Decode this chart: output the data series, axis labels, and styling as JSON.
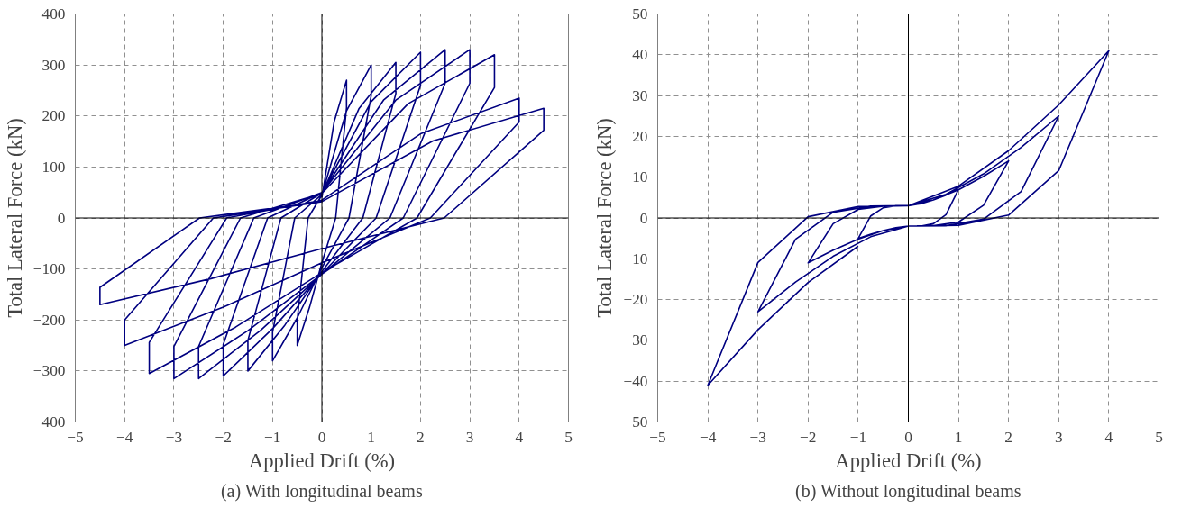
{
  "chart_data": [
    {
      "type": "line",
      "xlabel": "Applied Drift (%)",
      "ylabel": "Total Lateral Force (kN)",
      "annotations": [
        "(a) With longitudinal beams"
      ],
      "xlim": [
        -5,
        5
      ],
      "ylim": [
        -400,
        400
      ],
      "xticks": [
        -5,
        -4,
        -3,
        -2,
        -1,
        0,
        1,
        2,
        3,
        4,
        5
      ],
      "yticks": [
        -400,
        -300,
        -200,
        -100,
        0,
        100,
        200,
        300,
        400
      ],
      "grid": true,
      "series": [
        {
          "color": "#000080",
          "x": [
            0,
            0.25,
            0.5,
            0.5,
            0.28,
            0,
            -0.25,
            -0.5,
            -0.5,
            -0.28,
            0,
            0.5,
            1,
            1,
            0.55,
            0,
            -0.5,
            -1,
            -1,
            -0.55,
            0,
            0.75,
            1.5,
            1.5,
            0.83,
            0,
            -0.75,
            -1.5,
            -1.5,
            -0.83,
            0,
            1,
            2,
            2,
            1.1,
            0,
            -1,
            -2,
            -2,
            -1.1,
            0,
            1.25,
            2.5,
            2.5,
            1.38,
            0,
            -1.25,
            -2.5,
            -2.5,
            -1.38,
            0,
            1.5,
            3,
            3,
            1.65,
            0,
            -1.5,
            -3,
            -3,
            -1.65,
            0,
            1.75,
            3.5,
            3.5,
            1.93,
            0,
            -1.75,
            -3.5,
            -3.5,
            -1.93,
            0,
            2,
            4,
            4,
            2.2,
            0,
            -2,
            -4,
            -4,
            -2.2,
            0,
            2.25,
            4.5,
            4.5,
            2.48,
            0,
            -2.25,
            -4.5,
            -4.5,
            -2.48,
            0
          ],
          "values": [
            40,
            189,
            270,
            216,
            0,
            -88,
            -175,
            -250,
            -200,
            0,
            45,
            210,
            300,
            240,
            0,
            -98,
            -196,
            -280,
            -224,
            0,
            46,
            214,
            305,
            244,
            0,
            -105,
            -210,
            -300,
            -240,
            0,
            49,
            228,
            325,
            260,
            0,
            -109,
            -217,
            -310,
            -248,
            0,
            50,
            231,
            330,
            264,
            0,
            -110,
            -221,
            -315,
            -252,
            0,
            50,
            231,
            330,
            264,
            0,
            -110,
            -221,
            -315,
            -252,
            0,
            48,
            224,
            320,
            256,
            0,
            -107,
            -214,
            -305,
            -244,
            0,
            35,
            165,
            235,
            188,
            0,
            -88,
            -175,
            -250,
            -200,
            0,
            32,
            151,
            215,
            172,
            0,
            -60,
            -119,
            -170,
            -136,
            0,
            32
          ]
        }
      ]
    },
    {
      "type": "line",
      "xlabel": "Applied Drift (%)",
      "ylabel": "Total Lateral Force (kN)",
      "annotations": [
        "(b) Without longitudinal beams"
      ],
      "xlim": [
        -5,
        5
      ],
      "ylim": [
        -50,
        50
      ],
      "xticks": [
        -5,
        -4,
        -3,
        -2,
        -1,
        0,
        1,
        2,
        3,
        4,
        5
      ],
      "yticks": [
        -50,
        -40,
        -30,
        -20,
        -10,
        0,
        10,
        20,
        30,
        40,
        50
      ],
      "grid": true,
      "series": [
        {
          "color": "#000080",
          "x": [
            0,
            0.25,
            0.5,
            0.75,
            1,
            0.75,
            0.5,
            0.25,
            0,
            -0.25,
            -0.5,
            -0.75,
            -1,
            -0.75,
            -0.5,
            -0.25,
            0,
            0.5,
            1,
            1.5,
            2,
            1.5,
            1,
            0.5,
            0,
            -0.5,
            -1,
            -1.5,
            -2,
            -1.5,
            -1,
            -0.5,
            0,
            0.75,
            1.5,
            2.25,
            3,
            2.25,
            1.5,
            0.75,
            0,
            -0.75,
            -1.5,
            -2.25,
            -3,
            -2.25,
            -1.5,
            -0.75,
            0,
            1,
            2,
            3,
            4,
            3,
            2,
            1,
            0,
            -1,
            -2,
            -3,
            -4,
            -3,
            -2,
            -1
          ],
          "values": [
            -2,
            -2,
            -1.4,
            0.8,
            7,
            5.6,
            4.4,
            3.5,
            3,
            3,
            2.5,
            0.5,
            -5,
            -4,
            -3.1,
            -2.4,
            -2,
            -1.9,
            -1,
            3.1,
            14,
            10.2,
            6.9,
            4.4,
            3,
            2.9,
            2.1,
            -1.4,
            -11,
            -7.9,
            -5.2,
            -3.1,
            -2,
            -1.9,
            -0.3,
            6.5,
            25,
            17.3,
            10.8,
            5.8,
            3,
            2.9,
            1.4,
            -5.2,
            -23,
            -15.7,
            -9.4,
            -4.6,
            -2,
            -1.8,
            0.7,
            11.6,
            41,
            27.7,
            16.5,
            7.8,
            3,
            2.8,
            0.3,
            -10.9,
            -41,
            -27.4,
            -15.8,
            -6.9
          ]
        }
      ]
    }
  ]
}
